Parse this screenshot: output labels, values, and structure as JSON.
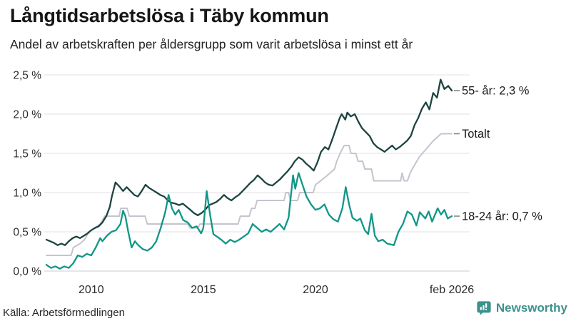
{
  "header": {
    "title": "Långtidsarbetslösa i Täby kommun",
    "subtitle": "Andel av arbetskraften per åldersgrupp som varit arbetslösa i minst ett år"
  },
  "footer": {
    "source": "Källa: Arbetsförmedlingen",
    "brand": "Newsworthy",
    "brand_color": "#3e918b"
  },
  "chart_data": {
    "type": "line",
    "title": "Långtidsarbetslösa i Täby kommun",
    "subtitle": "Andel av arbetskraften per åldersgrupp som varit arbetslösa i minst ett år",
    "xlabel": "",
    "ylabel": "",
    "grid": true,
    "legend_position": "right-end-labels",
    "x_range": [
      2008.0,
      2026.17
    ],
    "ylim": [
      0,
      2.5
    ],
    "y_ticks": [
      {
        "value": 0.0,
        "label": "0,0 %"
      },
      {
        "value": 0.5,
        "label": "0,5 %"
      },
      {
        "value": 1.0,
        "label": "1,0 %"
      },
      {
        "value": 1.5,
        "label": "1,5 %"
      },
      {
        "value": 2.0,
        "label": "2,0 %"
      },
      {
        "value": 2.5,
        "label": "2,5 %"
      }
    ],
    "x_ticks": [
      {
        "value": 2010.0,
        "label": "2010"
      },
      {
        "value": 2015.0,
        "label": "2015"
      },
      {
        "value": 2020.0,
        "label": "2020"
      },
      {
        "value": 2026.08,
        "label": "feb 2026"
      }
    ],
    "series": [
      {
        "name": "Totalt",
        "end_label": "Totalt",
        "end_value": 1.75,
        "color": "#c6c3ce",
        "width": 2,
        "points": [
          [
            2008.0,
            0.2
          ],
          [
            2009.1,
            0.2
          ],
          [
            2009.2,
            0.3
          ],
          [
            2009.5,
            0.35
          ],
          [
            2009.7,
            0.4
          ],
          [
            2009.9,
            0.5
          ],
          [
            2010.15,
            0.55
          ],
          [
            2010.4,
            0.6
          ],
          [
            2010.6,
            0.7
          ],
          [
            2011.25,
            0.7
          ],
          [
            2011.32,
            0.8
          ],
          [
            2011.6,
            0.8
          ],
          [
            2011.7,
            0.7
          ],
          [
            2012.4,
            0.7
          ],
          [
            2012.5,
            0.6
          ],
          [
            2014.3,
            0.6
          ],
          [
            2014.4,
            0.55
          ],
          [
            2014.75,
            0.55
          ],
          [
            2014.85,
            0.6
          ],
          [
            2016.55,
            0.6
          ],
          [
            2016.65,
            0.7
          ],
          [
            2017.05,
            0.7
          ],
          [
            2017.15,
            0.8
          ],
          [
            2017.3,
            0.8
          ],
          [
            2017.4,
            0.9
          ],
          [
            2018.6,
            0.9
          ],
          [
            2018.68,
            1.0
          ],
          [
            2018.8,
            1.0
          ],
          [
            2018.88,
            0.9
          ],
          [
            2019.2,
            0.9
          ],
          [
            2019.3,
            1.0
          ],
          [
            2019.9,
            1.0
          ],
          [
            2020.0,
            1.1
          ],
          [
            2020.45,
            1.2
          ],
          [
            2020.85,
            1.3
          ],
          [
            2020.95,
            1.4
          ],
          [
            2021.1,
            1.5
          ],
          [
            2021.28,
            1.6
          ],
          [
            2021.5,
            1.6
          ],
          [
            2021.58,
            1.5
          ],
          [
            2021.8,
            1.5
          ],
          [
            2021.9,
            1.4
          ],
          [
            2022.1,
            1.4
          ],
          [
            2022.2,
            1.3
          ],
          [
            2022.5,
            1.3
          ],
          [
            2022.6,
            1.15
          ],
          [
            2023.8,
            1.15
          ],
          [
            2023.86,
            1.25
          ],
          [
            2023.95,
            1.15
          ],
          [
            2024.1,
            1.15
          ],
          [
            2024.22,
            1.25
          ],
          [
            2024.42,
            1.35
          ],
          [
            2024.62,
            1.45
          ],
          [
            2024.92,
            1.55
          ],
          [
            2025.22,
            1.65
          ],
          [
            2025.6,
            1.75
          ],
          [
            2026.08,
            1.75
          ]
        ]
      },
      {
        "name": "55- år",
        "end_label": "55- år: 2,3 %",
        "end_value": 2.3,
        "color": "#1c4440",
        "width": 2.3,
        "points": [
          [
            2008.0,
            0.4
          ],
          [
            2008.17,
            0.38
          ],
          [
            2008.33,
            0.36
          ],
          [
            2008.5,
            0.33
          ],
          [
            2008.67,
            0.35
          ],
          [
            2008.83,
            0.33
          ],
          [
            2009.0,
            0.38
          ],
          [
            2009.17,
            0.42
          ],
          [
            2009.33,
            0.44
          ],
          [
            2009.5,
            0.42
          ],
          [
            2009.67,
            0.45
          ],
          [
            2009.83,
            0.48
          ],
          [
            2010.0,
            0.52
          ],
          [
            2010.17,
            0.55
          ],
          [
            2010.33,
            0.57
          ],
          [
            2010.5,
            0.62
          ],
          [
            2010.67,
            0.7
          ],
          [
            2010.83,
            0.82
          ],
          [
            2010.92,
            0.95
          ],
          [
            2011.08,
            1.13
          ],
          [
            2011.25,
            1.08
          ],
          [
            2011.42,
            1.02
          ],
          [
            2011.58,
            1.07
          ],
          [
            2011.75,
            1.02
          ],
          [
            2011.92,
            0.97
          ],
          [
            2012.08,
            0.95
          ],
          [
            2012.25,
            1.02
          ],
          [
            2012.42,
            1.1
          ],
          [
            2012.58,
            1.06
          ],
          [
            2012.75,
            1.03
          ],
          [
            2012.92,
            1.0
          ],
          [
            2013.08,
            0.97
          ],
          [
            2013.25,
            0.95
          ],
          [
            2013.42,
            0.9
          ],
          [
            2013.58,
            0.87
          ],
          [
            2013.75,
            0.86
          ],
          [
            2013.92,
            0.84
          ],
          [
            2014.08,
            0.86
          ],
          [
            2014.25,
            0.82
          ],
          [
            2014.42,
            0.78
          ],
          [
            2014.58,
            0.74
          ],
          [
            2014.75,
            0.71
          ],
          [
            2014.92,
            0.74
          ],
          [
            2015.08,
            0.78
          ],
          [
            2015.25,
            0.84
          ],
          [
            2015.42,
            0.86
          ],
          [
            2015.58,
            0.88
          ],
          [
            2015.75,
            0.92
          ],
          [
            2015.92,
            0.97
          ],
          [
            2016.08,
            0.93
          ],
          [
            2016.25,
            0.9
          ],
          [
            2016.42,
            0.94
          ],
          [
            2016.58,
            0.97
          ],
          [
            2016.75,
            1.02
          ],
          [
            2016.92,
            1.07
          ],
          [
            2017.08,
            1.12
          ],
          [
            2017.25,
            1.16
          ],
          [
            2017.42,
            1.22
          ],
          [
            2017.58,
            1.18
          ],
          [
            2017.75,
            1.13
          ],
          [
            2017.92,
            1.1
          ],
          [
            2018.08,
            1.09
          ],
          [
            2018.25,
            1.13
          ],
          [
            2018.42,
            1.17
          ],
          [
            2018.58,
            1.22
          ],
          [
            2018.75,
            1.27
          ],
          [
            2018.92,
            1.33
          ],
          [
            2019.08,
            1.4
          ],
          [
            2019.25,
            1.45
          ],
          [
            2019.42,
            1.42
          ],
          [
            2019.58,
            1.37
          ],
          [
            2019.75,
            1.33
          ],
          [
            2019.92,
            1.28
          ],
          [
            2020.08,
            1.38
          ],
          [
            2020.25,
            1.52
          ],
          [
            2020.42,
            1.58
          ],
          [
            2020.58,
            1.55
          ],
          [
            2020.75,
            1.68
          ],
          [
            2020.92,
            1.82
          ],
          [
            2021.08,
            1.95
          ],
          [
            2021.17,
            2.0
          ],
          [
            2021.33,
            1.93
          ],
          [
            2021.42,
            2.02
          ],
          [
            2021.58,
            1.97
          ],
          [
            2021.75,
            2.0
          ],
          [
            2021.92,
            1.9
          ],
          [
            2022.08,
            1.82
          ],
          [
            2022.25,
            1.77
          ],
          [
            2022.42,
            1.72
          ],
          [
            2022.58,
            1.63
          ],
          [
            2022.75,
            1.58
          ],
          [
            2022.92,
            1.55
          ],
          [
            2023.08,
            1.52
          ],
          [
            2023.25,
            1.56
          ],
          [
            2023.42,
            1.6
          ],
          [
            2023.58,
            1.55
          ],
          [
            2023.75,
            1.58
          ],
          [
            2023.92,
            1.62
          ],
          [
            2024.08,
            1.66
          ],
          [
            2024.25,
            1.72
          ],
          [
            2024.42,
            1.86
          ],
          [
            2024.58,
            1.95
          ],
          [
            2024.75,
            2.07
          ],
          [
            2024.92,
            2.15
          ],
          [
            2025.08,
            2.06
          ],
          [
            2025.25,
            2.27
          ],
          [
            2025.42,
            2.21
          ],
          [
            2025.58,
            2.44
          ],
          [
            2025.75,
            2.32
          ],
          [
            2025.92,
            2.36
          ],
          [
            2026.08,
            2.3
          ]
        ]
      },
      {
        "name": "18-24 år",
        "end_label": "18-24 år: 0,7 %",
        "end_value": 0.7,
        "color": "#119687",
        "width": 2.3,
        "points": [
          [
            2008.0,
            0.08
          ],
          [
            2008.2,
            0.04
          ],
          [
            2008.4,
            0.06
          ],
          [
            2008.6,
            0.03
          ],
          [
            2008.8,
            0.06
          ],
          [
            2009.0,
            0.04
          ],
          [
            2009.2,
            0.1
          ],
          [
            2009.4,
            0.2
          ],
          [
            2009.6,
            0.18
          ],
          [
            2009.8,
            0.22
          ],
          [
            2010.0,
            0.2
          ],
          [
            2010.2,
            0.3
          ],
          [
            2010.4,
            0.42
          ],
          [
            2010.5,
            0.38
          ],
          [
            2010.7,
            0.45
          ],
          [
            2010.9,
            0.5
          ],
          [
            2011.1,
            0.52
          ],
          [
            2011.3,
            0.6
          ],
          [
            2011.42,
            0.77
          ],
          [
            2011.52,
            0.7
          ],
          [
            2011.65,
            0.5
          ],
          [
            2011.8,
            0.3
          ],
          [
            2011.95,
            0.38
          ],
          [
            2012.1,
            0.33
          ],
          [
            2012.3,
            0.28
          ],
          [
            2012.5,
            0.26
          ],
          [
            2012.7,
            0.3
          ],
          [
            2012.9,
            0.38
          ],
          [
            2013.1,
            0.55
          ],
          [
            2013.3,
            0.75
          ],
          [
            2013.45,
            0.97
          ],
          [
            2013.6,
            0.8
          ],
          [
            2013.75,
            0.72
          ],
          [
            2013.9,
            0.78
          ],
          [
            2014.1,
            0.65
          ],
          [
            2014.3,
            0.62
          ],
          [
            2014.5,
            0.55
          ],
          [
            2014.7,
            0.57
          ],
          [
            2014.9,
            0.48
          ],
          [
            2015.0,
            0.55
          ],
          [
            2015.15,
            1.02
          ],
          [
            2015.3,
            0.72
          ],
          [
            2015.45,
            0.47
          ],
          [
            2015.6,
            0.44
          ],
          [
            2015.8,
            0.4
          ],
          [
            2016.0,
            0.35
          ],
          [
            2016.2,
            0.4
          ],
          [
            2016.4,
            0.37
          ],
          [
            2016.6,
            0.4
          ],
          [
            2016.8,
            0.44
          ],
          [
            2017.0,
            0.48
          ],
          [
            2017.2,
            0.6
          ],
          [
            2017.4,
            0.55
          ],
          [
            2017.6,
            0.5
          ],
          [
            2017.8,
            0.53
          ],
          [
            2018.0,
            0.5
          ],
          [
            2018.2,
            0.55
          ],
          [
            2018.4,
            0.6
          ],
          [
            2018.6,
            0.53
          ],
          [
            2018.8,
            0.68
          ],
          [
            2019.0,
            1.22
          ],
          [
            2019.1,
            1.05
          ],
          [
            2019.25,
            1.25
          ],
          [
            2019.4,
            1.12
          ],
          [
            2019.6,
            0.95
          ],
          [
            2019.8,
            0.85
          ],
          [
            2020.0,
            0.78
          ],
          [
            2020.2,
            0.8
          ],
          [
            2020.4,
            0.85
          ],
          [
            2020.6,
            0.72
          ],
          [
            2020.8,
            0.66
          ],
          [
            2021.0,
            0.63
          ],
          [
            2021.2,
            0.8
          ],
          [
            2021.35,
            1.07
          ],
          [
            2021.5,
            0.85
          ],
          [
            2021.65,
            0.68
          ],
          [
            2021.85,
            0.64
          ],
          [
            2022.0,
            0.67
          ],
          [
            2022.2,
            0.52
          ],
          [
            2022.35,
            0.47
          ],
          [
            2022.5,
            0.73
          ],
          [
            2022.65,
            0.45
          ],
          [
            2022.8,
            0.38
          ],
          [
            2023.0,
            0.4
          ],
          [
            2023.2,
            0.35
          ],
          [
            2023.5,
            0.33
          ],
          [
            2023.7,
            0.5
          ],
          [
            2023.9,
            0.6
          ],
          [
            2024.1,
            0.76
          ],
          [
            2024.3,
            0.72
          ],
          [
            2024.5,
            0.58
          ],
          [
            2024.65,
            0.75
          ],
          [
            2024.9,
            0.67
          ],
          [
            2025.05,
            0.76
          ],
          [
            2025.2,
            0.63
          ],
          [
            2025.45,
            0.8
          ],
          [
            2025.6,
            0.72
          ],
          [
            2025.75,
            0.78
          ],
          [
            2025.9,
            0.67
          ],
          [
            2026.08,
            0.7
          ]
        ]
      }
    ]
  }
}
